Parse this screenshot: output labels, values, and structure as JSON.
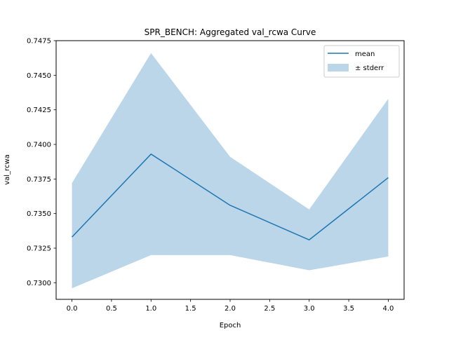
{
  "chart_data": {
    "type": "line",
    "title": "SPR_BENCH: Aggregated val_rcwa Curve",
    "xlabel": "Epoch",
    "ylabel": "val_rcwa",
    "x": [
      0,
      1,
      2,
      3,
      4
    ],
    "series": [
      {
        "name": "mean",
        "values": [
          0.7333,
          0.7393,
          0.7356,
          0.7331,
          0.7376
        ],
        "color": "#1f77b4"
      }
    ],
    "band": {
      "name": "± stderr",
      "lower": [
        0.7296,
        0.732,
        0.732,
        0.7309,
        0.7319
      ],
      "upper": [
        0.7372,
        0.7466,
        0.7391,
        0.7353,
        0.7433
      ],
      "color": "#1f77b4"
    },
    "xlim": [
      -0.2,
      4.2
    ],
    "ylim": [
      0.7288,
      0.7475
    ],
    "xticks": [
      "0.0",
      "0.5",
      "1.0",
      "1.5",
      "2.0",
      "2.5",
      "3.0",
      "3.5",
      "4.0"
    ],
    "yticks": [
      "0.7300",
      "0.7325",
      "0.7350",
      "0.7375",
      "0.7400",
      "0.7425",
      "0.7450",
      "0.7475"
    ],
    "grid": false,
    "legend": "upper right"
  }
}
